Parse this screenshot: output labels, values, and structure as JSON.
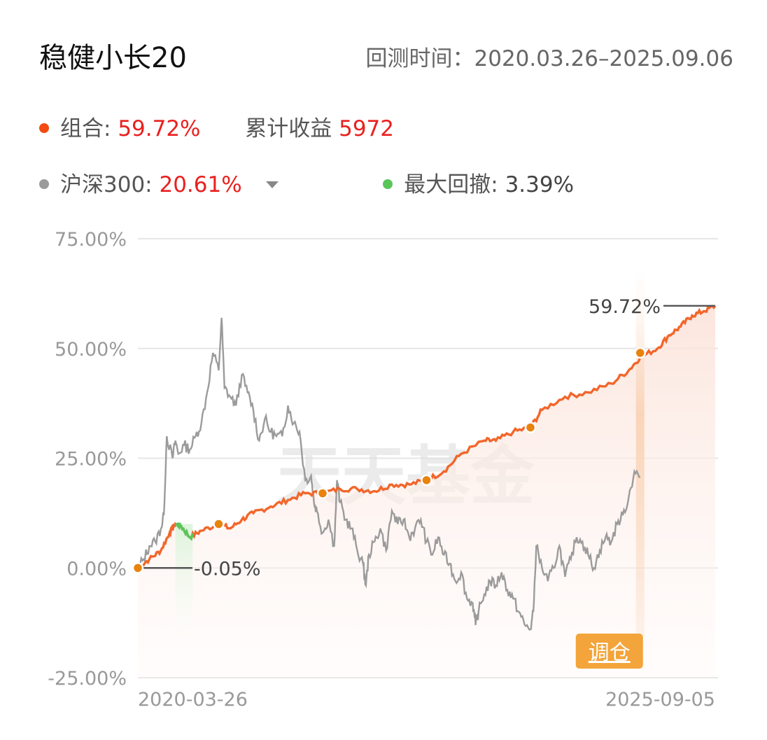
{
  "header": {
    "title": "稳健小长20",
    "period_label": "回测时间：",
    "period_value": "2020.03.26–2025.09.06"
  },
  "legend": {
    "portfolio_label": "组合:",
    "portfolio_value": "59.72%",
    "cumulative_label": "累计收益",
    "cumulative_value": "5972",
    "benchmark_label": "沪深300:",
    "benchmark_value": "20.61%",
    "drawdown_label": "最大回撤:",
    "drawdown_value": "3.39%"
  },
  "watermark": "天天基金",
  "rebalance_label": "调仓",
  "colors": {
    "portfolio": "#f2662b",
    "benchmark": "#9b9b9b",
    "drawdown": "#5bc55a",
    "rebalance_dot": "#e8830e",
    "rebalance_tag": "#f3a43a",
    "value_red": "#e8211f"
  },
  "chart_data": {
    "type": "line",
    "y_ticks": [
      "75.00%",
      "50.00%",
      "25.00%",
      "0.00%",
      "-25.00%"
    ],
    "ylim": [
      -25,
      75
    ],
    "x_start_label": "2020-03-26",
    "x_end_label": "2025-09-05",
    "start_annotation": "-0.05%",
    "end_annotation": "59.72%",
    "series": [
      {
        "name": "组合",
        "points": [
          [
            0,
            0
          ],
          [
            0.02,
            2
          ],
          [
            0.04,
            4
          ],
          [
            0.055,
            8
          ],
          [
            0.065,
            10
          ],
          [
            0.075,
            9.5
          ],
          [
            0.09,
            7
          ],
          [
            0.11,
            8.5
          ],
          [
            0.14,
            10
          ],
          [
            0.16,
            9
          ],
          [
            0.18,
            11
          ],
          [
            0.2,
            12.5
          ],
          [
            0.23,
            14
          ],
          [
            0.26,
            15.5
          ],
          [
            0.29,
            17
          ],
          [
            0.32,
            17
          ],
          [
            0.35,
            18
          ],
          [
            0.38,
            18
          ],
          [
            0.41,
            17.5
          ],
          [
            0.44,
            19
          ],
          [
            0.47,
            19
          ],
          [
            0.5,
            20
          ],
          [
            0.53,
            22
          ],
          [
            0.56,
            26
          ],
          [
            0.6,
            29
          ],
          [
            0.62,
            29
          ],
          [
            0.65,
            31
          ],
          [
            0.68,
            32
          ],
          [
            0.7,
            36
          ],
          [
            0.74,
            39
          ],
          [
            0.78,
            40
          ],
          [
            0.82,
            42
          ],
          [
            0.85,
            45
          ],
          [
            0.87,
            48
          ],
          [
            0.9,
            50
          ],
          [
            0.92,
            53
          ],
          [
            0.94,
            55
          ],
          [
            0.96,
            57.5
          ],
          [
            0.98,
            58.5
          ],
          [
            1,
            59.72
          ]
        ]
      },
      {
        "name": "沪深300",
        "points": [
          [
            0,
            0
          ],
          [
            0.01,
            2
          ],
          [
            0.02,
            5
          ],
          [
            0.03,
            6
          ],
          [
            0.04,
            9
          ],
          [
            0.045,
            12
          ],
          [
            0.05,
            30
          ],
          [
            0.06,
            25
          ],
          [
            0.065,
            29
          ],
          [
            0.07,
            26
          ],
          [
            0.08,
            28
          ],
          [
            0.09,
            27
          ],
          [
            0.1,
            30
          ],
          [
            0.11,
            33
          ],
          [
            0.12,
            40
          ],
          [
            0.13,
            49
          ],
          [
            0.14,
            45
          ],
          [
            0.145,
            57
          ],
          [
            0.15,
            41
          ],
          [
            0.16,
            39
          ],
          [
            0.17,
            37
          ],
          [
            0.18,
            44
          ],
          [
            0.19,
            40
          ],
          [
            0.2,
            36
          ],
          [
            0.21,
            29
          ],
          [
            0.22,
            34
          ],
          [
            0.23,
            31
          ],
          [
            0.24,
            30
          ],
          [
            0.25,
            30
          ],
          [
            0.26,
            37
          ],
          [
            0.27,
            33
          ],
          [
            0.28,
            31
          ],
          [
            0.29,
            20
          ],
          [
            0.3,
            21
          ],
          [
            0.305,
            15
          ],
          [
            0.31,
            13
          ],
          [
            0.32,
            8
          ],
          [
            0.33,
            11
          ],
          [
            0.34,
            5
          ],
          [
            0.345,
            20
          ],
          [
            0.35,
            15
          ],
          [
            0.36,
            11
          ],
          [
            0.37,
            9
          ],
          [
            0.38,
            4
          ],
          [
            0.39,
            1
          ],
          [
            0.395,
            -4
          ],
          [
            0.4,
            3
          ],
          [
            0.41,
            6
          ],
          [
            0.42,
            9
          ],
          [
            0.43,
            4
          ],
          [
            0.44,
            13
          ],
          [
            0.45,
            10
          ],
          [
            0.46,
            11
          ],
          [
            0.47,
            7
          ],
          [
            0.48,
            9
          ],
          [
            0.49,
            11
          ],
          [
            0.5,
            6
          ],
          [
            0.51,
            3
          ],
          [
            0.52,
            7
          ],
          [
            0.53,
            3
          ],
          [
            0.54,
            1
          ],
          [
            0.55,
            -3
          ],
          [
            0.56,
            -1
          ],
          [
            0.57,
            -7
          ],
          [
            0.58,
            -8
          ],
          [
            0.585,
            -13
          ],
          [
            0.59,
            -10
          ],
          [
            0.6,
            -6
          ],
          [
            0.61,
            -3
          ],
          [
            0.62,
            -4
          ],
          [
            0.63,
            -1
          ],
          [
            0.64,
            -5
          ],
          [
            0.65,
            -7
          ],
          [
            0.66,
            -10
          ],
          [
            0.67,
            -13
          ],
          [
            0.68,
            -14
          ],
          [
            0.685,
            -10
          ],
          [
            0.69,
            5
          ],
          [
            0.7,
            0
          ],
          [
            0.71,
            -3
          ],
          [
            0.72,
            0
          ],
          [
            0.73,
            5
          ],
          [
            0.74,
            -2
          ],
          [
            0.75,
            2
          ],
          [
            0.76,
            7
          ],
          [
            0.77,
            6
          ],
          [
            0.78,
            3
          ],
          [
            0.79,
            0
          ],
          [
            0.8,
            4
          ],
          [
            0.81,
            7
          ],
          [
            0.82,
            6
          ],
          [
            0.83,
            10
          ],
          [
            0.84,
            12
          ],
          [
            0.85,
            16
          ],
          [
            0.86,
            22
          ],
          [
            0.87,
            20.61
          ]
        ]
      }
    ],
    "rebalance_points": [
      [
        0,
        0
      ],
      [
        0.14,
        10
      ],
      [
        0.32,
        17
      ],
      [
        0.5,
        20
      ],
      [
        0.68,
        32
      ],
      [
        0.87,
        49
      ]
    ],
    "drawdown_range": [
      0.065,
      0.095
    ]
  }
}
